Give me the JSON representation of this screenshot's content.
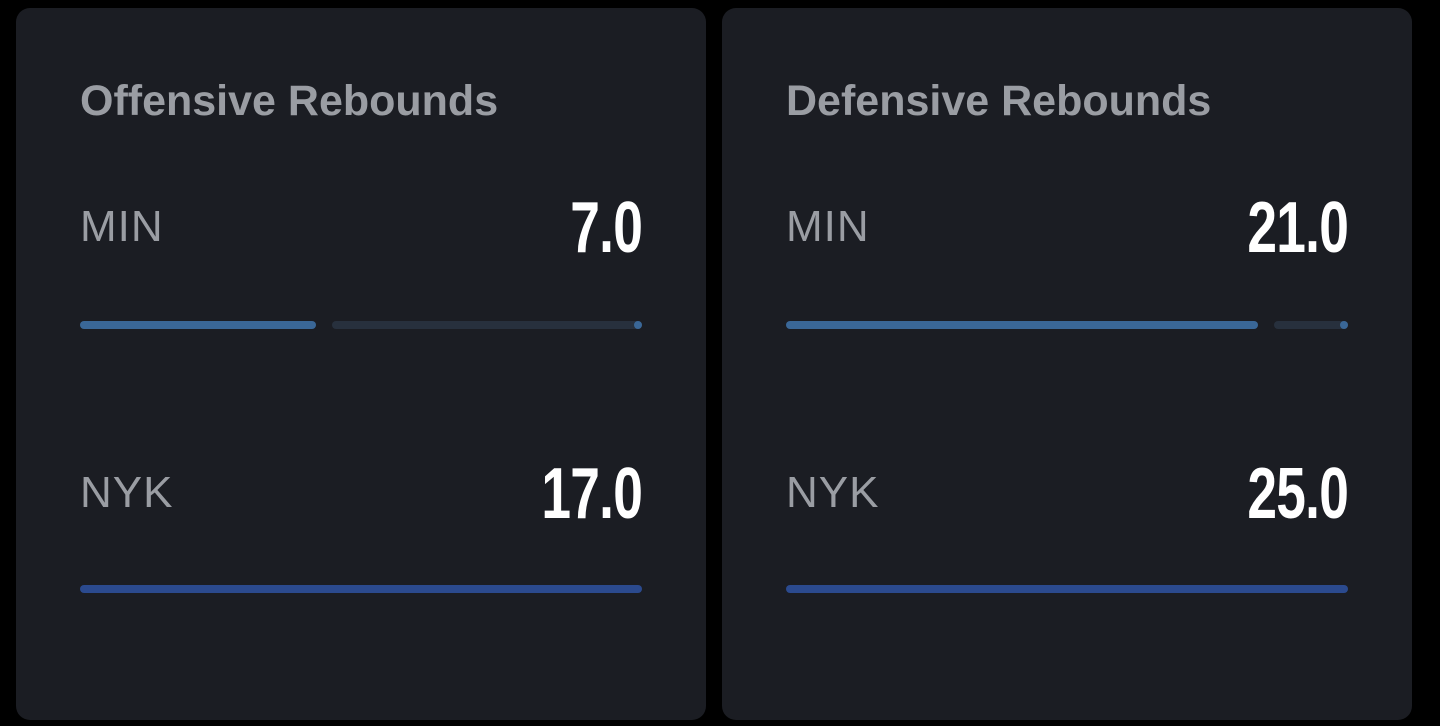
{
  "cards": [
    {
      "title": "Offensive Rebounds",
      "rows": [
        {
          "team": "MIN",
          "value": "7.0",
          "fill_fraction": 0.42,
          "color": "#3a6797"
        },
        {
          "team": "NYK",
          "value": "17.0",
          "fill_fraction": 1.0,
          "color": "#2b4a8e"
        }
      ]
    },
    {
      "title": "Defensive Rebounds",
      "rows": [
        {
          "team": "MIN",
          "value": "21.0",
          "fill_fraction": 0.84,
          "color": "#3a6797"
        },
        {
          "team": "NYK",
          "value": "25.0",
          "fill_fraction": 1.0,
          "color": "#2b4a8e"
        }
      ]
    }
  ],
  "colors": {
    "background": "#000000",
    "card": "#1b1d23",
    "muted_text": "#9a9da3",
    "value_text": "#ffffff",
    "track": "#27303d"
  }
}
